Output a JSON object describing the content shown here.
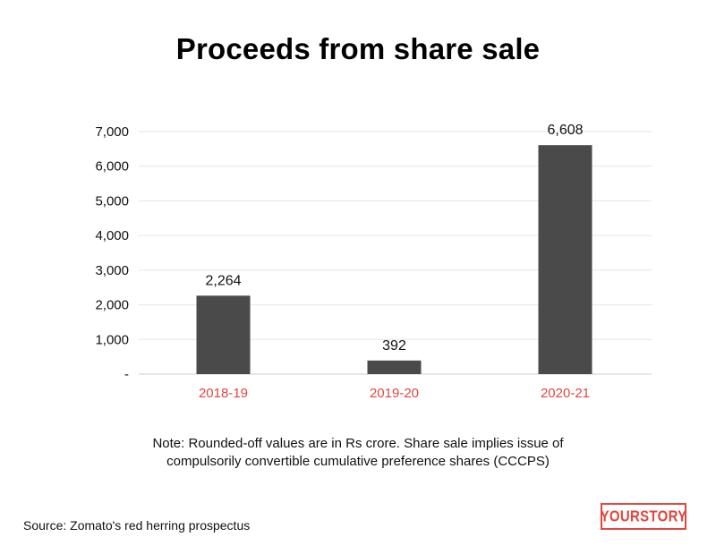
{
  "chart_data": {
    "type": "bar",
    "title": "Proceeds from share sale",
    "xlabel": "",
    "ylabel": "",
    "categories": [
      "2018-19",
      "2019-20",
      "2020-21"
    ],
    "values": [
      2264,
      392,
      6608
    ],
    "value_labels": [
      "2,264",
      "392",
      "6,608"
    ],
    "yticks": [
      0,
      1000,
      2000,
      3000,
      4000,
      5000,
      6000,
      7000
    ],
    "ytick_labels": [
      "-",
      "1,000",
      "2,000",
      "3,000",
      "4,000",
      "5,000",
      "6,000",
      "7,000"
    ],
    "ylim": [
      0,
      7000
    ],
    "grid": true,
    "bar_color": "#4a4a4a",
    "category_label_color": "#e0473e"
  },
  "note": {
    "line1": "Note: Rounded-off values are in Rs crore. Share sale implies issue of",
    "line2": "compulsorily convertible cumulative preference shares (CCCPS)"
  },
  "source": "Source: Zomato's red herring prospectus",
  "logo": {
    "text": "YOURSTORY",
    "color": "#e0473e"
  }
}
